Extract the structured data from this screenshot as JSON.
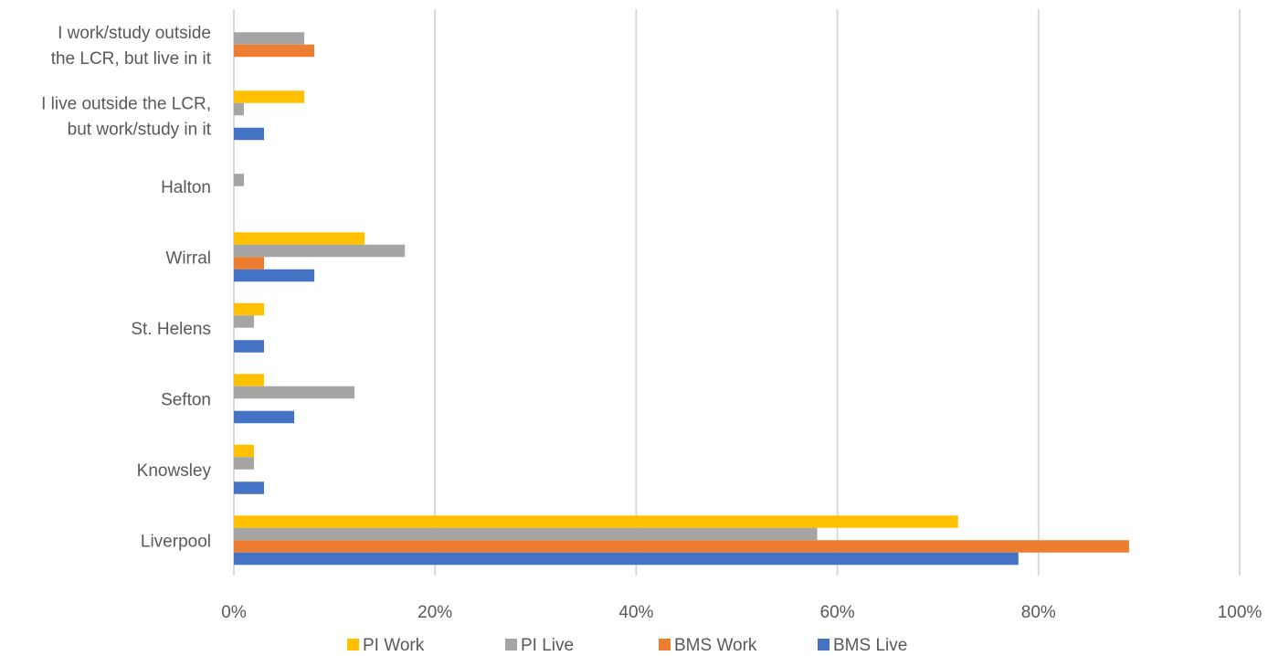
{
  "chart_data": {
    "type": "bar",
    "orientation": "horizontal",
    "categories": [
      [
        "I work/study outside",
        "the LCR, but live in it"
      ],
      [
        "I live outside the LCR,",
        "but work/study in it"
      ],
      [
        "Halton"
      ],
      [
        "Wirral"
      ],
      [
        "St. Helens"
      ],
      [
        "Sefton"
      ],
      [
        "Knowsley"
      ],
      [
        "Liverpool"
      ]
    ],
    "series": [
      {
        "name": "PI Work",
        "color": "#FFC000",
        "values": [
          0,
          7,
          0,
          13,
          3,
          3,
          2,
          72
        ]
      },
      {
        "name": "PI Live",
        "color": "#A5A5A5",
        "values": [
          7,
          1,
          1,
          17,
          2,
          12,
          2,
          58
        ]
      },
      {
        "name": "BMS Work",
        "color": "#ED7D31",
        "values": [
          8,
          0,
          0,
          3,
          0,
          0,
          0,
          89
        ]
      },
      {
        "name": "BMS Live",
        "color": "#4472C4",
        "values": [
          0,
          3,
          0,
          8,
          3,
          6,
          3,
          78
        ]
      }
    ],
    "xlim": [
      0,
      100
    ],
    "x_ticks": [
      "0%",
      "20%",
      "40%",
      "60%",
      "80%",
      "100%"
    ],
    "grid": true,
    "legend_position": "bottom"
  }
}
